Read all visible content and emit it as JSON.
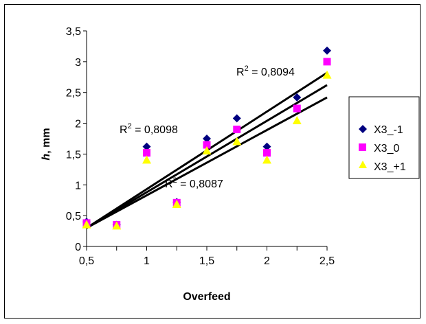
{
  "chart_data": {
    "type": "scatter",
    "title": "",
    "xlabel": "Overfeed",
    "ylabel_italic": "h",
    "ylabel_rest": ", mm",
    "xlim": [
      0.5,
      2.5
    ],
    "ylim": [
      0,
      3.5
    ],
    "xticks": [
      0.5,
      1,
      1.5,
      2,
      2.5
    ],
    "xtick_labels": [
      "0,5",
      "1",
      "1,5",
      "2",
      "2,5"
    ],
    "yticks": [
      0,
      0.5,
      1,
      1.5,
      2,
      2.5,
      3,
      3.5
    ],
    "ytick_labels": [
      "0",
      "0,5",
      "1",
      "1,5",
      "2",
      "2,5",
      "3",
      "3,5"
    ],
    "x_minor_ticks": [
      0.75,
      1.25,
      1.75,
      2.25
    ],
    "grid": false,
    "legend_position": "right",
    "series": [
      {
        "name": "X3_-1",
        "marker": "diamond",
        "color": "#000080",
        "points": [
          [
            0.5,
            0.4
          ],
          [
            0.75,
            0.35
          ],
          [
            1.0,
            1.62
          ],
          [
            1.25,
            0.72
          ],
          [
            1.5,
            1.75
          ],
          [
            1.75,
            2.08
          ],
          [
            2.0,
            1.62
          ],
          [
            2.25,
            2.42
          ],
          [
            2.5,
            3.18
          ]
        ],
        "trendline": {
          "x": [
            0.5,
            2.5
          ],
          "y": [
            0.3,
            2.82
          ]
        },
        "r2_label": "0,8094"
      },
      {
        "name": "X3_0",
        "marker": "square",
        "color": "#FF00FF",
        "points": [
          [
            0.5,
            0.38
          ],
          [
            0.75,
            0.35
          ],
          [
            1.0,
            1.52
          ],
          [
            1.25,
            0.71
          ],
          [
            1.5,
            1.65
          ],
          [
            1.75,
            1.9
          ],
          [
            2.0,
            1.52
          ],
          [
            2.25,
            2.24
          ],
          [
            2.5,
            3.0
          ]
        ],
        "trendline": {
          "x": [
            0.5,
            2.5
          ],
          "y": [
            0.3,
            2.62
          ]
        },
        "r2_label": "0,8098"
      },
      {
        "name": "X3_+1",
        "marker": "triangle",
        "color": "#FFFF00",
        "points": [
          [
            0.5,
            0.35
          ],
          [
            0.75,
            0.33
          ],
          [
            1.0,
            1.4
          ],
          [
            1.25,
            0.68
          ],
          [
            1.5,
            1.55
          ],
          [
            1.75,
            1.7
          ],
          [
            2.0,
            1.4
          ],
          [
            2.25,
            2.04
          ],
          [
            2.5,
            2.78
          ]
        ],
        "trendline": {
          "x": [
            0.5,
            2.5
          ],
          "y": [
            0.3,
            2.42
          ]
        },
        "r2_label": "0,8087"
      }
    ],
    "annotations": [
      {
        "prefix": "R",
        "sup": "2",
        "suffix": " = 0,8094"
      },
      {
        "prefix": "R",
        "sup": "2",
        "suffix": " = 0,8098"
      },
      {
        "prefix": "R",
        "sup": "2",
        "suffix": " = 0,8087"
      }
    ]
  }
}
